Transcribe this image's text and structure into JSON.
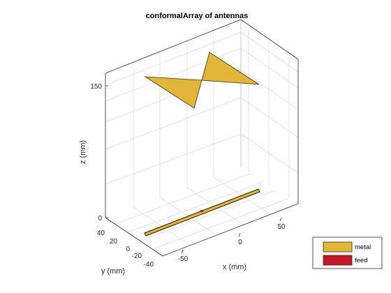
{
  "chart_data": {
    "type": "scatter",
    "title": "conformalArray of antennas",
    "xlabel": "x (mm)",
    "ylabel": "y (mm)",
    "zlabel": "z (mm)",
    "x_ticks": [
      "-50",
      "0",
      "50"
    ],
    "y_ticks": [
      "40",
      "20",
      "0",
      "-20",
      "-40"
    ],
    "z_ticks": [
      "0",
      "150"
    ],
    "legend": [
      {
        "label": "metal",
        "color": "#e2b639"
      },
      {
        "label": "feed",
        "color": "#c2182a"
      }
    ],
    "colors": {
      "metal": "#e2b639",
      "feed": "#c2182a",
      "grid": "#dcdcdc",
      "axis": "#262626"
    },
    "legend_position": "bottom-right",
    "view": "3d",
    "grid": true
  }
}
